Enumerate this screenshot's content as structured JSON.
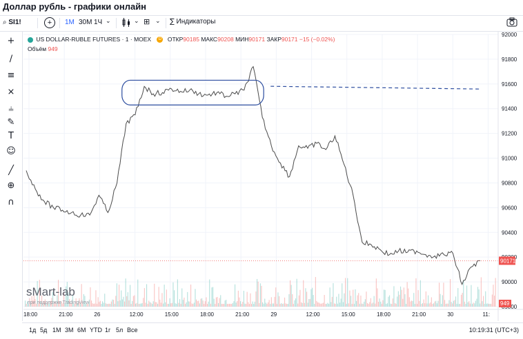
{
  "page": {
    "title": "Доллар рубль - графики онлайн"
  },
  "toolbar": {
    "symbol": "SI1!",
    "add_icon": "plus-circle-icon",
    "timeframes": [
      "1М",
      "30М",
      "1Ч"
    ],
    "active_timeframe": "1М",
    "chart_type_icon": "candles-icon",
    "indicators_label": "Индикаторы",
    "camera_icon": "camera-icon"
  },
  "left_tools": [
    "crosshair-icon",
    "trendline-icon",
    "horizontal-lines-icon",
    "pitchfork-icon",
    "fib-icon",
    "brush-icon",
    "text-icon",
    "emoji-icon",
    "ruler-icon",
    "zoom-icon",
    "magnet-icon"
  ],
  "legend": {
    "title": "US DOLLAR-RUBLE FUTURES · 1 · MOEX",
    "open_label": "ОТКР",
    "open": "90185",
    "high_label": "МАКС",
    "high": "90208",
    "low_label": "МИН",
    "low": "90171",
    "close_label": "ЗАКР",
    "close": "90171",
    "change": "−15 (−0.02%)",
    "volume_label": "Объём",
    "volume": "949"
  },
  "watermark": {
    "text": "sMart-lab",
    "sub": "при поддержке TradingView"
  },
  "bottom": {
    "ranges": [
      "1д",
      "5д",
      "1М",
      "3М",
      "6М",
      "YTD",
      "1г",
      "5л",
      "Все"
    ],
    "clock": "10:19:31 (UTC+3)"
  },
  "colors": {
    "up": "#26a69a",
    "down": "#ef5350",
    "drawing": "#2b4c9f",
    "price_line": "#ef5350"
  },
  "chart_data": {
    "type": "line",
    "ylim": [
      89800,
      92000
    ],
    "y_ticks": [
      92000,
      91800,
      91600,
      91400,
      91200,
      91000,
      90800,
      90600,
      90400,
      90200,
      90000,
      89800
    ],
    "x_tick_labels": [
      "18:00",
      "21:00",
      "26",
      "12:00",
      "15:00",
      "18:00",
      "21:00",
      "29",
      "12:00",
      "15:00",
      "18:00",
      "21:00",
      "30",
      "11:"
    ],
    "current_price": 90171,
    "current_price_label": "90171",
    "volume_label": "949",
    "x": [
      0,
      2,
      4,
      6,
      8,
      10,
      12,
      14,
      16,
      18,
      20,
      22,
      24,
      26,
      28,
      30,
      32,
      34,
      36,
      38,
      40,
      42,
      44,
      46,
      48,
      50,
      52,
      54,
      56,
      58,
      60,
      62,
      64,
      66,
      68,
      70,
      72,
      74,
      76,
      78,
      80,
      82,
      84,
      86,
      88,
      90,
      92,
      94,
      96,
      98,
      100
    ],
    "series": [
      {
        "values": [
          90900,
          90750,
          90650,
          90600,
          90580,
          90560,
          90540,
          90540,
          90700,
          90560,
          90800,
          91280,
          91350,
          91580,
          91520,
          91530,
          91560,
          91540,
          91550,
          91520,
          91510,
          91530,
          91500,
          91520,
          91550,
          91740,
          91330,
          91100,
          90960,
          90850,
          91100,
          91080,
          91120,
          91070,
          91180,
          90950,
          90700,
          90320,
          90300,
          90260,
          90220,
          90250,
          90240,
          90250,
          90220,
          90210,
          90220,
          90230,
          89980,
          90120,
          90171
        ]
      }
    ]
  },
  "annotations": {
    "consolidation_box": {
      "y_low": 91430,
      "y_high": 91630
    },
    "dashed_level": 91570
  }
}
